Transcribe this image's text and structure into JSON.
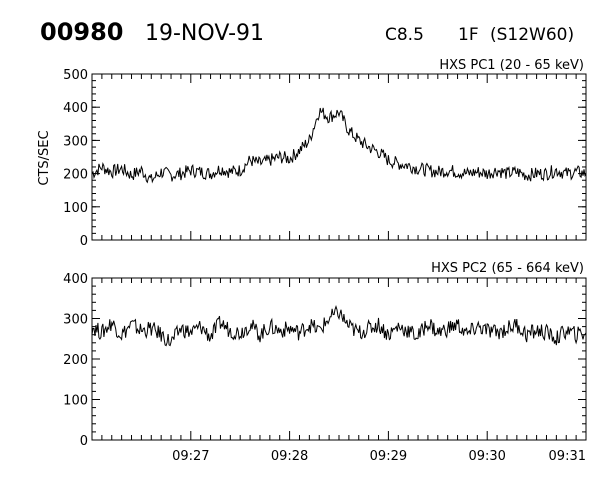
{
  "header": {
    "event_id": "00980",
    "date": "19-NOV-91",
    "goes_class": "C8.5",
    "optical_class": "1F",
    "location": "(S12W60)"
  },
  "chart_data": [
    {
      "type": "line",
      "title": "HXS PC1 (20 - 65 keV)",
      "ylabel": "CTS/SEC",
      "xlabel": "",
      "x_ticks": [
        "09:27",
        "09:28",
        "09:29",
        "09:30",
        "09:31"
      ],
      "x_tick_minutes": [
        27,
        28,
        29,
        30,
        31
      ],
      "xlim_minutes": [
        26.0,
        31.0
      ],
      "ylim": [
        0,
        500
      ],
      "y_ticks": [
        0,
        100,
        200,
        300,
        400,
        500
      ],
      "grid": false,
      "series": [
        {
          "x_minutes": [
            26.0,
            26.1,
            26.2,
            26.3,
            26.4,
            26.5,
            26.6,
            26.7,
            26.8,
            26.9,
            27.0,
            27.1,
            27.2,
            27.3,
            27.4,
            27.5,
            27.6,
            27.7,
            27.8,
            27.9,
            28.0,
            28.1,
            28.2,
            28.3,
            28.4,
            28.5,
            28.6,
            28.7,
            28.8,
            28.9,
            29.0,
            29.1,
            29.2,
            29.3,
            29.4,
            29.5,
            29.6,
            29.7,
            29.8,
            29.9,
            30.0,
            30.1,
            30.2,
            30.3,
            30.4,
            30.5,
            30.6,
            30.7,
            30.8,
            30.9,
            31.0
          ],
          "values": [
            200,
            220,
            205,
            215,
            195,
            210,
            180,
            205,
            195,
            200,
            210,
            205,
            200,
            215,
            205,
            210,
            240,
            230,
            240,
            250,
            245,
            270,
            300,
            390,
            370,
            385,
            330,
            300,
            280,
            265,
            240,
            230,
            225,
            215,
            210,
            205,
            210,
            205,
            200,
            205,
            200,
            210,
            200,
            205,
            195,
            200,
            200,
            210,
            200,
            205,
            200
          ]
        }
      ]
    },
    {
      "type": "line",
      "title": "HXS PC2 (65 - 664 keV)",
      "ylabel": "",
      "xlabel": "",
      "x_ticks": [
        "09:27",
        "09:28",
        "09:29",
        "09:30",
        "09:31"
      ],
      "x_tick_minutes": [
        27,
        28,
        29,
        30,
        31
      ],
      "xlim_minutes": [
        26.0,
        31.0
      ],
      "ylim": [
        0,
        400
      ],
      "y_ticks": [
        0,
        100,
        200,
        300,
        400
      ],
      "grid": false,
      "series": [
        {
          "x_minutes": [
            26.0,
            26.1,
            26.2,
            26.3,
            26.4,
            26.5,
            26.6,
            26.7,
            26.8,
            26.9,
            27.0,
            27.1,
            27.2,
            27.3,
            27.4,
            27.5,
            27.6,
            27.7,
            27.8,
            27.9,
            28.0,
            28.1,
            28.2,
            28.3,
            28.4,
            28.5,
            28.6,
            28.7,
            28.8,
            28.9,
            29.0,
            29.1,
            29.2,
            29.3,
            29.4,
            29.5,
            29.6,
            29.7,
            29.8,
            29.9,
            30.0,
            30.1,
            30.2,
            30.3,
            30.4,
            30.5,
            30.6,
            30.7,
            30.8,
            30.9,
            31.0
          ],
          "values": [
            280,
            265,
            290,
            260,
            285,
            270,
            275,
            260,
            240,
            275,
            265,
            280,
            255,
            290,
            270,
            265,
            285,
            260,
            280,
            270,
            275,
            265,
            285,
            270,
            300,
            315,
            280,
            265,
            275,
            285,
            260,
            280,
            270,
            255,
            290,
            265,
            275,
            285,
            260,
            280,
            270,
            265,
            275,
            285,
            260,
            270,
            265,
            250,
            270,
            260,
            265
          ]
        }
      ]
    }
  ]
}
